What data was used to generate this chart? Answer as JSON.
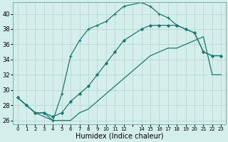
{
  "xlabel": "Humidex (Indice chaleur)",
  "bg_color": "#d4eeeb",
  "grid_color": "#b8d8d4",
  "line_color": "#1a7a6e",
  "xlim": [
    -0.5,
    23.5
  ],
  "ylim": [
    25.5,
    41.5
  ],
  "yticks": [
    26,
    28,
    30,
    32,
    34,
    36,
    38,
    40
  ],
  "x_vals": [
    0,
    1,
    2,
    3,
    4,
    5,
    6,
    7,
    8,
    9,
    10,
    11,
    12,
    14,
    15,
    16,
    17,
    18,
    19,
    20,
    21,
    22,
    23
  ],
  "line_top": [
    29,
    28,
    27,
    27,
    26,
    29.5,
    34.5,
    36.5,
    38,
    38.5,
    39,
    40,
    41,
    41.5,
    41,
    40,
    39.5,
    38.5,
    38,
    37.5,
    35,
    34.5,
    34.5
  ],
  "line_bot1": [
    29,
    28,
    27,
    27,
    26.5,
    27,
    28.5,
    29.5,
    30.5,
    32,
    33.5,
    35,
    36.5,
    38,
    38.5,
    38.5,
    38.5,
    38.5,
    38,
    37.5,
    35,
    34.5,
    34.5
  ],
  "line_bot2": [
    29,
    28,
    27,
    26.5,
    26,
    26,
    26,
    27,
    27.5,
    28.5,
    29.5,
    30.5,
    31.5,
    33.5,
    34.5,
    35,
    35.5,
    35.5,
    36,
    36.5,
    37,
    32,
    32
  ]
}
